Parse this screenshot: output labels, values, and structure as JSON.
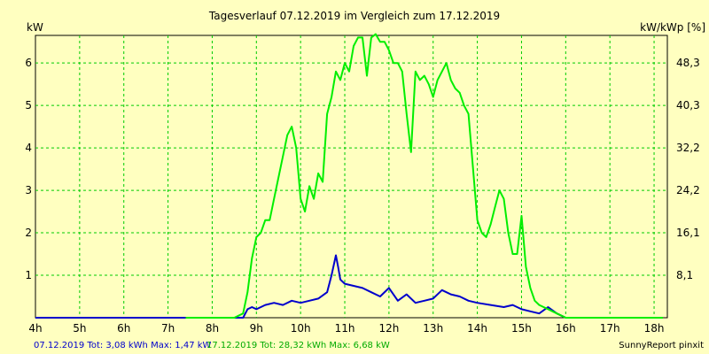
{
  "chart_data": {
    "type": "line",
    "title": "Tagesverlauf 07.12.2019 im Vergleich zum 17.12.2019",
    "ylabel_left": "kW",
    "ylabel_right": "kW/kWp [%]",
    "xlim": [
      4,
      18.3
    ],
    "ylim": [
      0,
      6.65
    ],
    "x_ticks": [
      "4h",
      "5h",
      "6h",
      "7h",
      "8h",
      "9h",
      "10h",
      "11h",
      "12h",
      "13h",
      "14h",
      "15h",
      "16h",
      "17h",
      "18h"
    ],
    "y_ticks_left": [
      "1",
      "2",
      "3",
      "4",
      "5",
      "6"
    ],
    "y_ticks_right": [
      "8,1",
      "16,1",
      "24,2",
      "32,2",
      "40,3",
      "48,3"
    ],
    "grid": true,
    "series": [
      {
        "name": "07.12.2019",
        "color": "#0000cc",
        "x": [
          4,
          8.7,
          8.8,
          8.9,
          9.0,
          9.2,
          9.4,
          9.6,
          9.8,
          10.0,
          10.2,
          10.4,
          10.6,
          10.7,
          10.8,
          10.85,
          10.9,
          11.0,
          11.2,
          11.4,
          11.6,
          11.8,
          12.0,
          12.2,
          12.4,
          12.6,
          12.8,
          13.0,
          13.2,
          13.4,
          13.6,
          13.8,
          14.0,
          14.3,
          14.6,
          14.8,
          15.0,
          15.2,
          15.4,
          15.6,
          15.8,
          16.0,
          18.2
        ],
        "values": [
          0,
          0,
          0.2,
          0.25,
          0.2,
          0.3,
          0.35,
          0.3,
          0.4,
          0.35,
          0.4,
          0.45,
          0.6,
          1.0,
          1.47,
          1.2,
          0.9,
          0.8,
          0.75,
          0.7,
          0.6,
          0.5,
          0.7,
          0.4,
          0.55,
          0.35,
          0.4,
          0.45,
          0.65,
          0.55,
          0.5,
          0.4,
          0.35,
          0.3,
          0.25,
          0.3,
          0.2,
          0.15,
          0.1,
          0.25,
          0.1,
          0,
          0
        ]
      },
      {
        "name": "17.12.2019",
        "color": "#00ee00",
        "x": [
          7.4,
          8.5,
          8.7,
          8.8,
          8.9,
          9.0,
          9.1,
          9.2,
          9.3,
          9.4,
          9.5,
          9.6,
          9.7,
          9.8,
          9.9,
          10.0,
          10.1,
          10.2,
          10.3,
          10.4,
          10.5,
          10.6,
          10.7,
          10.8,
          10.9,
          11.0,
          11.1,
          11.2,
          11.3,
          11.4,
          11.5,
          11.6,
          11.7,
          11.8,
          11.9,
          12.0,
          12.1,
          12.2,
          12.3,
          12.4,
          12.5,
          12.6,
          12.7,
          12.8,
          12.9,
          13.0,
          13.1,
          13.2,
          13.3,
          13.4,
          13.5,
          13.6,
          13.7,
          13.8,
          14.0,
          14.1,
          14.2,
          14.3,
          14.4,
          14.5,
          14.6,
          14.7,
          14.8,
          14.9,
          15.0,
          15.1,
          15.2,
          15.3,
          15.4,
          15.5,
          15.6,
          15.7,
          15.8,
          16.0,
          18.2
        ],
        "values": [
          0,
          0,
          0.1,
          0.6,
          1.4,
          1.9,
          2.0,
          2.3,
          2.3,
          2.8,
          3.3,
          3.8,
          4.3,
          4.5,
          4.0,
          2.8,
          2.5,
          3.1,
          2.8,
          3.4,
          3.2,
          4.8,
          5.2,
          5.8,
          5.6,
          6.0,
          5.8,
          6.4,
          6.6,
          6.6,
          5.7,
          6.6,
          6.68,
          6.5,
          6.5,
          6.3,
          6.0,
          6.0,
          5.8,
          4.8,
          3.9,
          5.8,
          5.6,
          5.7,
          5.5,
          5.2,
          5.6,
          5.8,
          6.0,
          5.6,
          5.4,
          5.3,
          5.0,
          4.8,
          2.3,
          2.0,
          1.9,
          2.2,
          2.6,
          3.0,
          2.8,
          2.0,
          1.5,
          1.5,
          2.4,
          1.2,
          0.7,
          0.4,
          0.3,
          0.25,
          0.2,
          0.15,
          0.1,
          0,
          0
        ]
      }
    ]
  },
  "footer": {
    "series1_summary": "07.12.2019 Tot: 3,08 kWh Max: 1,47 kW",
    "series2_summary": "17.12.2019 Tot: 28,32 kWh Max: 6,68 kW",
    "brand": "SunnyReport pinxit"
  }
}
